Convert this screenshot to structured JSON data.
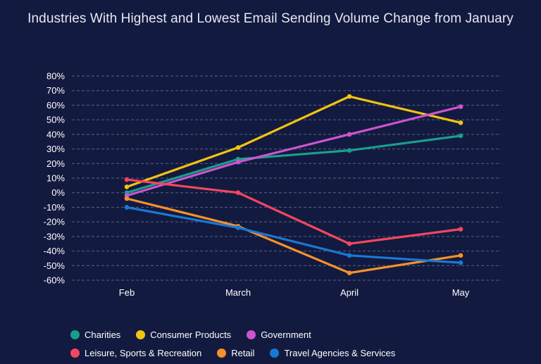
{
  "chart_data": {
    "type": "line",
    "title": "Industries With Highest and Lowest Email Sending Volume Change from January",
    "categories": [
      "Feb",
      "March",
      "April",
      "May"
    ],
    "ylim": [
      -60,
      80
    ],
    "yticks": [
      80,
      70,
      60,
      50,
      40,
      30,
      20,
      10,
      0,
      -10,
      -20,
      -30,
      -40,
      -50,
      -60
    ],
    "ytick_labels": [
      "80%",
      "70%",
      "60%",
      "50%",
      "40%",
      "30%",
      "20%",
      "10%",
      "0%",
      "-10%",
      "-20%",
      "-30%",
      "-40%",
      "-50%",
      "-60%"
    ],
    "grid": true,
    "legend_position": "bottom",
    "series": [
      {
        "name": "Charities",
        "color": "#1a9e8c",
        "values": [
          0,
          23,
          29,
          39
        ]
      },
      {
        "name": "Consumer Products",
        "color": "#f2c311",
        "values": [
          4,
          31,
          66,
          48
        ]
      },
      {
        "name": "Government",
        "color": "#cc55cf",
        "values": [
          -2,
          21,
          40,
          59
        ]
      },
      {
        "name": "Leisure, Sports & Recreation",
        "color": "#f2475f",
        "values": [
          9,
          0,
          -35,
          -25
        ]
      },
      {
        "name": "Retail",
        "color": "#f5912b",
        "values": [
          -4,
          -23,
          -55,
          -43
        ]
      },
      {
        "name": "Travel Agencies & Services",
        "color": "#1a78d4",
        "values": [
          -10,
          -24,
          -43,
          -48
        ]
      }
    ]
  }
}
